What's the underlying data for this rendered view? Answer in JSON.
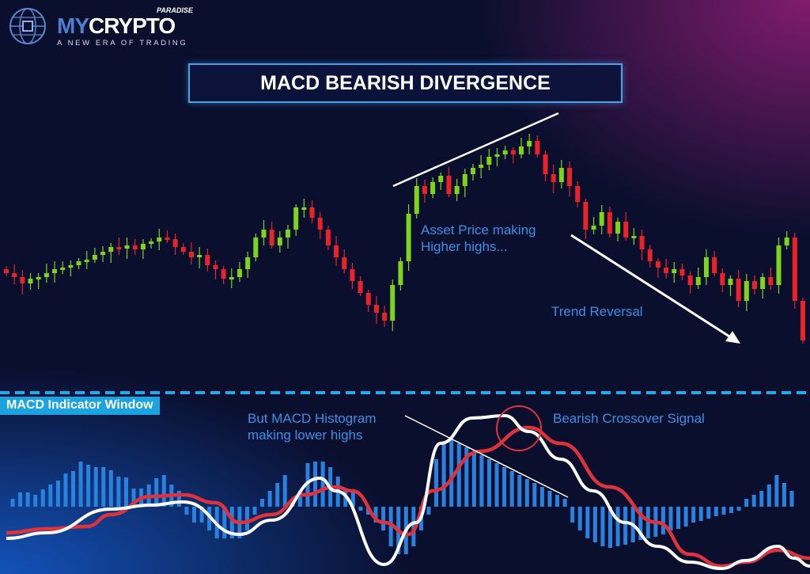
{
  "brand": {
    "logo_main_prefix": "MY",
    "logo_main_suffix": "CRYPTO",
    "logo_superscript": "PARADISE",
    "tagline": "A NEW ERA OF TRADING"
  },
  "chart_data": {
    "type": "candlestick+macd",
    "title": "MACD BEARISH DIVERGENCE",
    "colors": {
      "bullish": "#7ed321",
      "bearish": "#e8232a",
      "histogram": "#2a82e0",
      "macd_line": "#ffffff",
      "signal_line": "#e0323c",
      "annotation_text": "#3a8fe6",
      "divider": "#27a9e8"
    },
    "price_closes": [
      155,
      150,
      142,
      148,
      150,
      155,
      160,
      162,
      165,
      170,
      172,
      178,
      182,
      188,
      186,
      190,
      185,
      192,
      195,
      200,
      198,
      188,
      182,
      175,
      178,
      165,
      160,
      148,
      150,
      160,
      175,
      200,
      210,
      190,
      200,
      210,
      238,
      238,
      225,
      210,
      190,
      175,
      160,
      145,
      130,
      115,
      105,
      95,
      140,
      170,
      230,
      265,
      255,
      270,
      278,
      255,
      265,
      280,
      288,
      292,
      302,
      305,
      310,
      305,
      315,
      322,
      305,
      280,
      270,
      288,
      265,
      245,
      210,
      215,
      232,
      205,
      220,
      200,
      202,
      185,
      170,
      162,
      155,
      160,
      152,
      140,
      150,
      175,
      155,
      140,
      148,
      120,
      145,
      135,
      150,
      140,
      190,
      200,
      120,
      70
    ],
    "histogram": [
      10,
      18,
      18,
      15,
      22,
      28,
      33,
      42,
      45,
      57,
      53,
      50,
      50,
      46,
      38,
      37,
      23,
      23,
      28,
      36,
      40,
      28,
      20,
      -10,
      -20,
      -20,
      -30,
      -40,
      -40,
      -40,
      -40,
      -30,
      -10,
      10,
      20,
      30,
      40,
      10,
      20,
      55,
      57,
      57,
      50,
      38,
      20,
      20,
      -5,
      -10,
      -20,
      -30,
      -50,
      -60,
      -60,
      -50,
      -30,
      -10,
      60,
      80,
      85,
      80,
      75,
      70,
      65,
      60,
      55,
      50,
      45,
      40,
      35,
      30,
      25,
      20,
      15,
      10,
      -20,
      -30,
      -40,
      -45,
      -50,
      -52,
      -50,
      -48,
      -45,
      -42,
      -40,
      -38,
      -35,
      -30,
      -28,
      -25,
      -20,
      -18,
      -15,
      -12,
      -10,
      -8,
      -5,
      10,
      15,
      20,
      28,
      40,
      30,
      20
    ],
    "macd_line": [
      [
        0,
        -40
      ],
      [
        5,
        -33
      ],
      [
        13,
        -3
      ],
      [
        18,
        2
      ],
      [
        22,
        6
      ],
      [
        29,
        -35
      ],
      [
        33,
        -17
      ],
      [
        39,
        36
      ],
      [
        41,
        20
      ],
      [
        47,
        -73
      ],
      [
        51,
        -20
      ],
      [
        54,
        80
      ],
      [
        58,
        112
      ],
      [
        62,
        115
      ],
      [
        65,
        95
      ],
      [
        69,
        60
      ],
      [
        73,
        20
      ],
      [
        77,
        -20
      ],
      [
        81,
        -50
      ],
      [
        85,
        -70
      ],
      [
        89,
        -78
      ],
      [
        92,
        -68
      ],
      [
        96,
        -50
      ],
      [
        98,
        -65
      ],
      [
        100,
        -75
      ]
    ],
    "signal_line": [
      [
        0,
        -33
      ],
      [
        5,
        -28
      ],
      [
        10,
        -25
      ],
      [
        13,
        -10
      ],
      [
        18,
        13
      ],
      [
        22,
        15
      ],
      [
        26,
        5
      ],
      [
        29,
        -20
      ],
      [
        33,
        -10
      ],
      [
        37,
        15
      ],
      [
        41,
        25
      ],
      [
        43,
        20
      ],
      [
        47,
        -20
      ],
      [
        50,
        -35
      ],
      [
        53,
        20
      ],
      [
        59,
        70
      ],
      [
        65,
        100
      ],
      [
        69,
        80
      ],
      [
        75,
        25
      ],
      [
        81,
        -20
      ],
      [
        85,
        -60
      ],
      [
        89,
        -75
      ],
      [
        92,
        -70
      ],
      [
        96,
        -55
      ],
      [
        100,
        -65
      ]
    ],
    "annotations": {
      "higher_highs": "Asset Price making Higher highs...",
      "higher_highs_l1": "Asset Price making",
      "higher_highs_l2": "Higher highs...",
      "trend_reversal": "Trend Reversal",
      "histogram_l1": "But MACD Histogram",
      "histogram_l2": "making lower highs",
      "crossover": "Bearish Crossover Signal",
      "indicator_window": "MACD Indicator Window"
    },
    "axes": "none",
    "grid": false
  }
}
